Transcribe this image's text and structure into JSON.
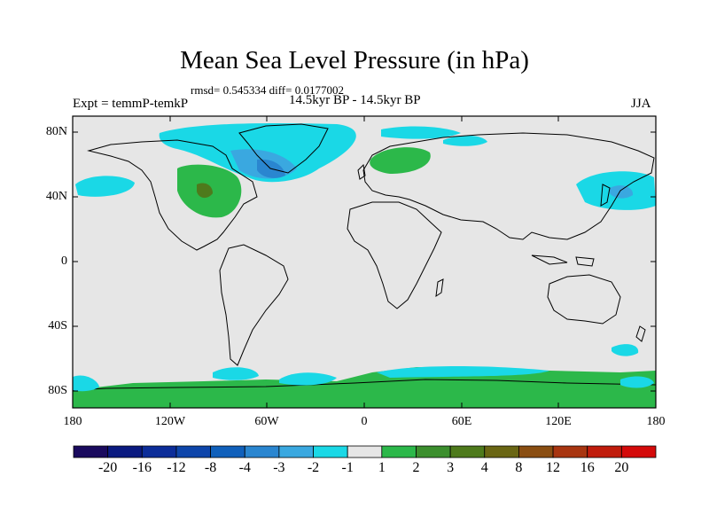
{
  "title": "Mean Sea Level Pressure (in hPa)",
  "stats": "rmsd= 0.545334 diff= 0.0177002",
  "left_label": "Expt = temmP-temkP",
  "center_label": "14.5kyr BP - 14.5kyr BP",
  "right_label": "JJA",
  "lat_ticks": [
    "80N",
    "40N",
    "0",
    "40S",
    "80S"
  ],
  "lon_ticks": [
    "180",
    "120W",
    "60W",
    "0",
    "60E",
    "120E",
    "180"
  ],
  "colorbar": {
    "labels": [
      "-20",
      "-16",
      "-12",
      "-8",
      "-4",
      "-3",
      "-2",
      "-1",
      "1",
      "2",
      "3",
      "4",
      "8",
      "12",
      "16",
      "20"
    ],
    "colors": [
      "#1a0a5e",
      "#0a1a80",
      "#0c2d99",
      "#0e45aa",
      "#1060bb",
      "#2a86d0",
      "#3aa8e0",
      "#1ad8e6",
      "#e6e6e6",
      "#2cb84a",
      "#3c8f2e",
      "#4e7a1c",
      "#6a6614",
      "#8a4e12",
      "#a83510",
      "#c01c0c",
      "#d40a0a"
    ]
  },
  "chart_data": {
    "type": "map",
    "title": "Mean Sea Level Pressure (in hPa)",
    "variable": "Mean Sea Level Pressure difference",
    "units": "hPa",
    "season": "JJA",
    "x_range": [
      -180,
      180
    ],
    "y_range": [
      -90,
      90
    ]
  }
}
